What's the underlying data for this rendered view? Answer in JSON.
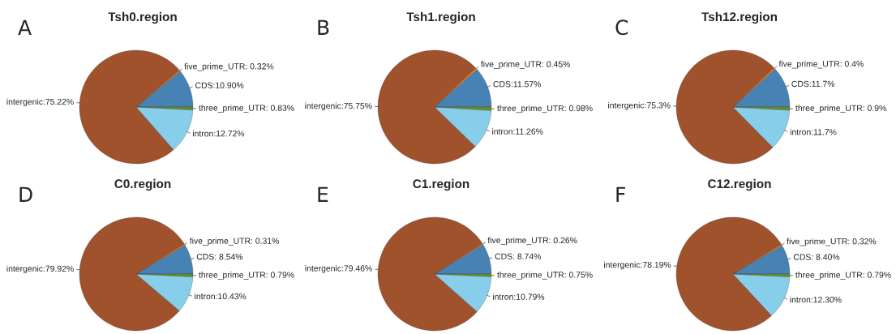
{
  "chart_data": [
    {
      "type": "pie",
      "title": "Tsh0.region",
      "annotations": [
        "A"
      ],
      "categories": [
        "CDS",
        "five_prime_UTR",
        "intergenic",
        "intron",
        "three_prime_UTR"
      ],
      "values": [
        10.9,
        0.32,
        75.22,
        12.72,
        0.83
      ],
      "colors": [
        "#4682b4",
        "#ff8c00",
        "#a0522d",
        "#87ceeb",
        "#6b8e23"
      ],
      "value_labels": [
        "10.90%",
        " 0.32%",
        "75.22%",
        "12.72%",
        " 0.83%"
      ]
    },
    {
      "type": "pie",
      "title": "Tsh1.region",
      "annotations": [
        "B"
      ],
      "categories": [
        "CDS",
        "five_prime_UTR",
        "intergenic",
        "intron",
        "three_prime_UTR"
      ],
      "values": [
        11.57,
        0.45,
        75.75,
        11.26,
        0.98
      ],
      "colors": [
        "#4682b4",
        "#ff8c00",
        "#a0522d",
        "#87ceeb",
        "#6b8e23"
      ],
      "value_labels": [
        "11.57%",
        " 0.45%",
        "75.75%",
        "11.26%",
        " 0.98%"
      ]
    },
    {
      "type": "pie",
      "title": "Tsh12.region",
      "annotations": [
        "C"
      ],
      "categories": [
        "CDS",
        "five_prime_UTR",
        "intergenic",
        "intron",
        "three_prime_UTR"
      ],
      "values": [
        11.7,
        0.4,
        75.3,
        11.7,
        0.9
      ],
      "colors": [
        "#4682b4",
        "#ff8c00",
        "#a0522d",
        "#87ceeb",
        "#6b8e23"
      ],
      "value_labels": [
        "11.7%",
        " 0.4%",
        "75.3%",
        "11.7%",
        " 0.9%"
      ]
    },
    {
      "type": "pie",
      "title": "C0.region",
      "annotations": [
        "D"
      ],
      "categories": [
        "CDS",
        "five_prime_UTR",
        "intergenic",
        "intron",
        "three_prime_UTR"
      ],
      "values": [
        8.54,
        0.31,
        79.92,
        10.43,
        0.79
      ],
      "colors": [
        "#4682b4",
        "#ff8c00",
        "#a0522d",
        "#87ceeb",
        "#6b8e23"
      ],
      "value_labels": [
        " 8.54%",
        " 0.31%",
        "79.92%",
        "10.43%",
        " 0.79%"
      ]
    },
    {
      "type": "pie",
      "title": "C1.region",
      "annotations": [
        "E"
      ],
      "categories": [
        "CDS",
        "five_prime_UTR",
        "intergenic",
        "intron",
        "three_prime_UTR"
      ],
      "values": [
        8.74,
        0.26,
        79.46,
        10.79,
        0.75
      ],
      "colors": [
        "#4682b4",
        "#ff8c00",
        "#a0522d",
        "#87ceeb",
        "#6b8e23"
      ],
      "value_labels": [
        " 8.74%",
        " 0.26%",
        "79.46%",
        "10.79%",
        " 0.75%"
      ]
    },
    {
      "type": "pie",
      "title": "C12.region",
      "annotations": [
        "F"
      ],
      "categories": [
        "CDS",
        "five_prime_UTR",
        "intergenic",
        "intron",
        "three_prime_UTR"
      ],
      "values": [
        8.4,
        0.32,
        78.19,
        12.3,
        0.79
      ],
      "colors": [
        "#4682b4",
        "#ff8c00",
        "#a0522d",
        "#87ceeb",
        "#6b8e23"
      ],
      "value_labels": [
        " 8.40%",
        " 0.32%",
        "78.19%",
        "12.30%",
        " 0.79%"
      ]
    }
  ]
}
